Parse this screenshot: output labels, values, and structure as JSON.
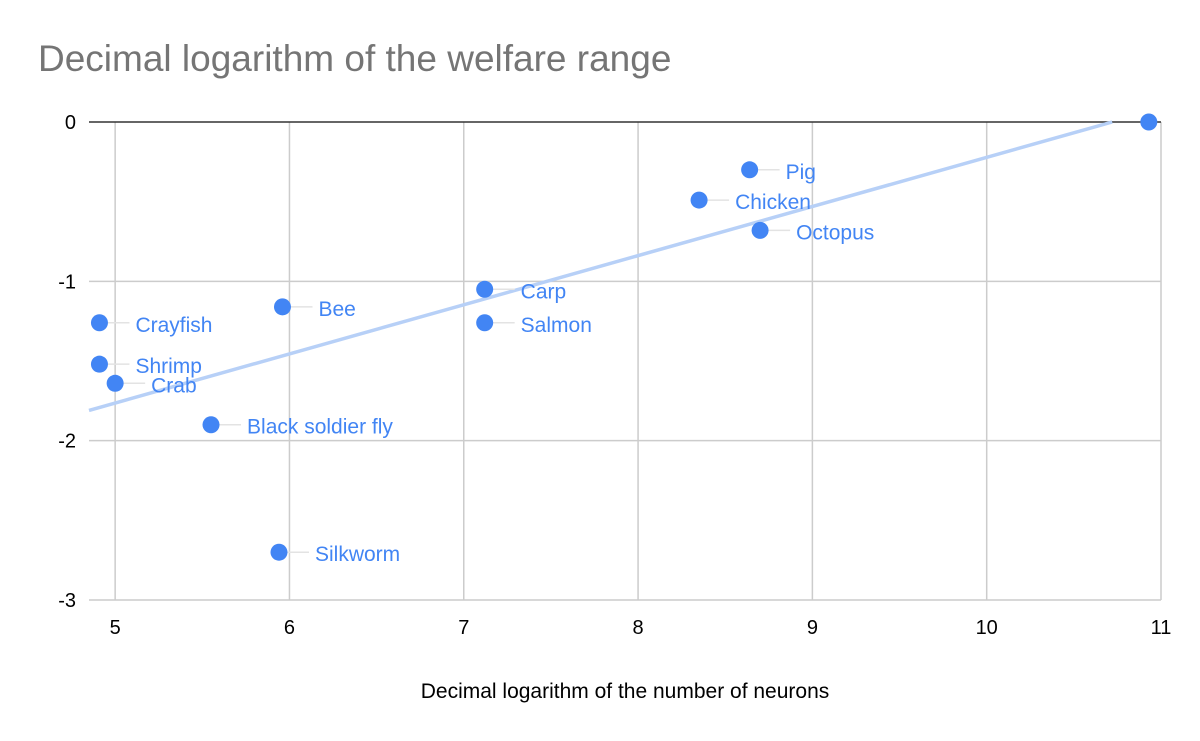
{
  "chart_data": {
    "type": "scatter",
    "title": "Decimal logarithm of the welfare range",
    "xlabel": "Decimal logarithm of the number of neurons",
    "ylabel": "",
    "xlim": [
      4.85,
      11
    ],
    "ylim": [
      -3,
      0
    ],
    "xticks": [
      5,
      6,
      7,
      8,
      9,
      10,
      11
    ],
    "yticks": [
      0,
      -1,
      -2,
      -3
    ],
    "grid": true,
    "points": [
      {
        "label": "Pig",
        "x": 8.64,
        "y": -0.3
      },
      {
        "label": "Chicken",
        "x": 8.35,
        "y": -0.49
      },
      {
        "label": "Octopus",
        "x": 8.7,
        "y": -0.68
      },
      {
        "label": "Carp",
        "x": 7.12,
        "y": -1.05
      },
      {
        "label": "Salmon",
        "x": 7.12,
        "y": -1.26
      },
      {
        "label": "Bee",
        "x": 5.96,
        "y": -1.16
      },
      {
        "label": "Crayfish",
        "x": 4.91,
        "y": -1.26
      },
      {
        "label": "Shrimp",
        "x": 4.91,
        "y": -1.52
      },
      {
        "label": "Crab",
        "x": 5.0,
        "y": -1.64
      },
      {
        "label": "Black soldier fly",
        "x": 5.55,
        "y": -1.9
      },
      {
        "label": "Silkworm",
        "x": 5.94,
        "y": -2.7
      },
      {
        "label": "",
        "x": 10.93,
        "y": 0.0
      }
    ],
    "trendline": {
      "x": [
        4.85,
        10.72
      ],
      "y": [
        -1.81,
        0
      ]
    },
    "colors": {
      "point": "#4285f4",
      "point_label": "#4285f4",
      "trendline": "#b7d0f7",
      "grid": "#cccccc",
      "zero_line": "#333333",
      "title": "#757575"
    }
  }
}
